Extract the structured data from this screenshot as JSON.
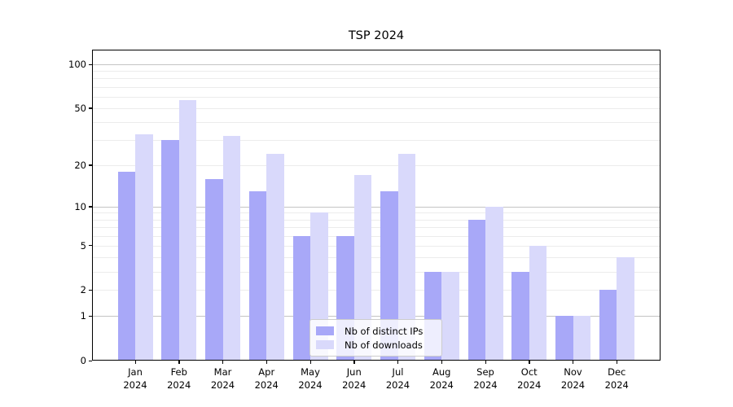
{
  "chart_data": {
    "type": "bar",
    "title": "TSP 2024",
    "categories": [
      "Jan",
      "Feb",
      "Mar",
      "Apr",
      "May",
      "Jun",
      "Jul",
      "Aug",
      "Sep",
      "Oct",
      "Nov",
      "Dec"
    ],
    "category_year": "2024",
    "series": [
      {
        "name": "Nb of distinct IPs",
        "key": "distinct-ips",
        "color": "#a8a8f8",
        "values": [
          18,
          30,
          16,
          13,
          6,
          6,
          13,
          3,
          8,
          3,
          1,
          2
        ]
      },
      {
        "name": "Nb of downloads",
        "key": "downloads",
        "color": "#d9d9fb",
        "values": [
          33,
          57,
          32,
          24,
          9,
          17,
          24,
          3,
          10,
          5,
          1,
          4
        ]
      }
    ],
    "yscale": "symlog",
    "ylim": [
      0,
      126
    ],
    "y_ticks": [
      0,
      1,
      2,
      5,
      10,
      20,
      50,
      100
    ],
    "y_major_gridlines": [
      1,
      10,
      100
    ],
    "y_minor_gridlines": [
      2,
      3,
      4,
      5,
      6,
      7,
      8,
      9,
      20,
      30,
      40,
      50,
      60,
      70,
      80,
      90
    ],
    "grid": "horizontal",
    "legend_position": "lower center",
    "colors": {
      "axis": "#000000",
      "grid_minor": "#ececec",
      "grid_major": "#c4c4c4",
      "legend_border": "#cccccc"
    }
  }
}
